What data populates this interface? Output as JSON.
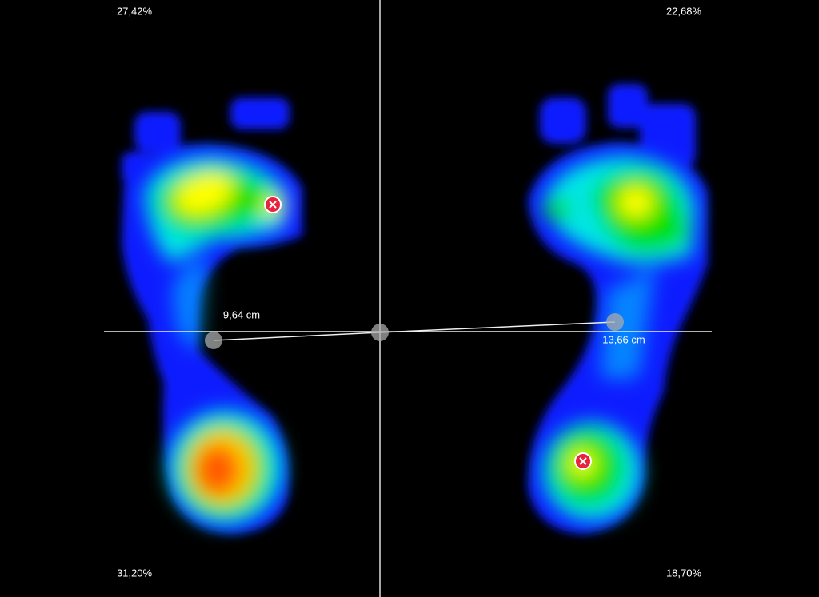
{
  "quadrants": {
    "top_left": "27,42%",
    "top_right": "22,68%",
    "bottom_left": "31,20%",
    "bottom_right": "18,70%"
  },
  "measurements": {
    "left": "9,64 cm",
    "right": "13,66 cm"
  }
}
